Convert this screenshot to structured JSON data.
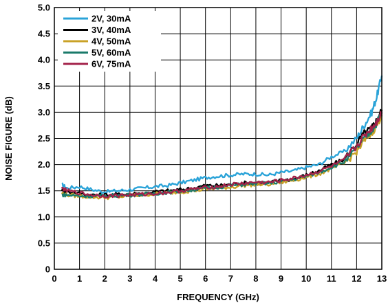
{
  "chart_data": {
    "type": "line",
    "xlabel": "FREQUENCY (GHz)",
    "ylabel": "NOISE FIGURE (dB)",
    "xlim": [
      0,
      13
    ],
    "ylim": [
      0,
      5
    ],
    "xticks": [
      0,
      1,
      2,
      3,
      4,
      5,
      6,
      7,
      8,
      9,
      10,
      11,
      12,
      13
    ],
    "yticks": [
      0,
      0.5,
      1.0,
      1.5,
      2.0,
      2.5,
      3.0,
      3.5,
      4.0,
      4.5,
      5.0
    ],
    "ytick_labels": [
      "0",
      "0.5",
      "1.0",
      "1.5",
      "2.0",
      "2.5",
      "3.0",
      "3.5",
      "4.0",
      "4.5",
      "5.0"
    ],
    "grid": true,
    "legend": "top-left",
    "x": [
      0.3,
      0.5,
      1,
      1.5,
      2,
      2.5,
      3,
      3.5,
      4,
      4.5,
      5,
      5.5,
      6,
      6.5,
      7,
      7.5,
      8,
      8.5,
      9,
      9.5,
      10,
      10.5,
      11,
      11.5,
      12,
      12.3,
      12.6,
      12.8,
      13
    ],
    "series": [
      {
        "name": "2V, 30mA",
        "color": "#2aa3d8",
        "values": [
          1.62,
          1.55,
          1.58,
          1.52,
          1.48,
          1.5,
          1.52,
          1.55,
          1.58,
          1.6,
          1.65,
          1.7,
          1.75,
          1.78,
          1.8,
          1.82,
          1.82,
          1.8,
          1.85,
          1.88,
          1.95,
          2.0,
          2.15,
          2.25,
          2.5,
          2.75,
          3.0,
          3.3,
          3.7
        ]
      },
      {
        "name": "3V, 40mA",
        "color": "#000000",
        "values": [
          1.52,
          1.48,
          1.45,
          1.42,
          1.42,
          1.43,
          1.44,
          1.45,
          1.48,
          1.5,
          1.52,
          1.55,
          1.6,
          1.6,
          1.62,
          1.65,
          1.65,
          1.65,
          1.7,
          1.72,
          1.8,
          1.88,
          2.0,
          2.1,
          2.4,
          2.6,
          2.7,
          2.85,
          3.05
        ]
      },
      {
        "name": "4V, 50mA",
        "color": "#c9a227",
        "values": [
          1.45,
          1.42,
          1.4,
          1.38,
          1.37,
          1.38,
          1.4,
          1.42,
          1.44,
          1.46,
          1.48,
          1.5,
          1.53,
          1.55,
          1.57,
          1.6,
          1.62,
          1.62,
          1.66,
          1.7,
          1.76,
          1.82,
          1.92,
          2.02,
          2.25,
          2.45,
          2.6,
          2.75,
          2.95
        ]
      },
      {
        "name": "5V, 60mA",
        "color": "#1a7a6a",
        "values": [
          1.42,
          1.42,
          1.4,
          1.4,
          1.4,
          1.41,
          1.42,
          1.43,
          1.45,
          1.47,
          1.49,
          1.52,
          1.55,
          1.57,
          1.6,
          1.62,
          1.64,
          1.64,
          1.68,
          1.72,
          1.78,
          1.85,
          1.95,
          2.05,
          2.3,
          2.5,
          2.65,
          2.8,
          3.0
        ]
      },
      {
        "name": "6V, 75mA",
        "color": "#a3224a",
        "values": [
          1.55,
          1.5,
          1.46,
          1.42,
          1.4,
          1.41,
          1.42,
          1.43,
          1.45,
          1.47,
          1.5,
          1.53,
          1.56,
          1.58,
          1.62,
          1.64,
          1.66,
          1.66,
          1.7,
          1.74,
          1.8,
          1.87,
          1.97,
          2.08,
          2.35,
          2.55,
          2.7,
          2.82,
          3.0
        ]
      }
    ]
  }
}
